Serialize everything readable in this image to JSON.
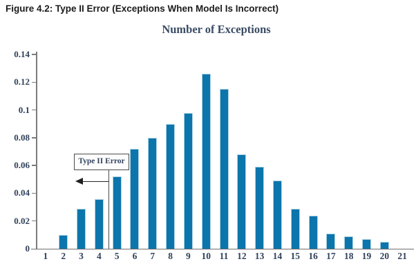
{
  "figure_caption": "Figure 4.2: Type II Error (Exceptions When Model Is Incorrect)",
  "chart_data": {
    "type": "bar",
    "title": "Number of Exceptions",
    "xlabel": "",
    "ylabel": "",
    "categories": [
      "1",
      "2",
      "3",
      "4",
      "5",
      "6",
      "7",
      "8",
      "9",
      "10",
      "11",
      "12",
      "13",
      "14",
      "15",
      "16",
      "17",
      "18",
      "19",
      "20",
      "21"
    ],
    "values": [
      0,
      0.01,
      0.029,
      0.036,
      0.052,
      0.072,
      0.08,
      0.09,
      0.098,
      0.126,
      0.115,
      0.068,
      0.059,
      0.049,
      0.029,
      0.024,
      0.011,
      0.009,
      0.007,
      0.005,
      0
    ],
    "ylim": [
      0,
      0.14
    ],
    "yticks": [
      {
        "label": "0.14",
        "value": 0.14
      },
      {
        "label": "0.12",
        "value": 0.12
      },
      {
        "label": "0.1",
        "value": 0.1
      },
      {
        "label": "0.08",
        "value": 0.08
      },
      {
        "label": "0.06",
        "value": 0.06
      },
      {
        "label": "0.04",
        "value": 0.04
      },
      {
        "label": "0.02",
        "value": 0.02
      },
      {
        "label": "0",
        "value": 0
      }
    ],
    "grid": false,
    "legend": null,
    "bar_color": "#0c75ac",
    "bar_edge_color": "#aed3e4",
    "annotation": {
      "label": "Type II Error",
      "arrow_direction": "left",
      "marks_boundary_between_categories": [
        "4",
        "5"
      ]
    }
  }
}
